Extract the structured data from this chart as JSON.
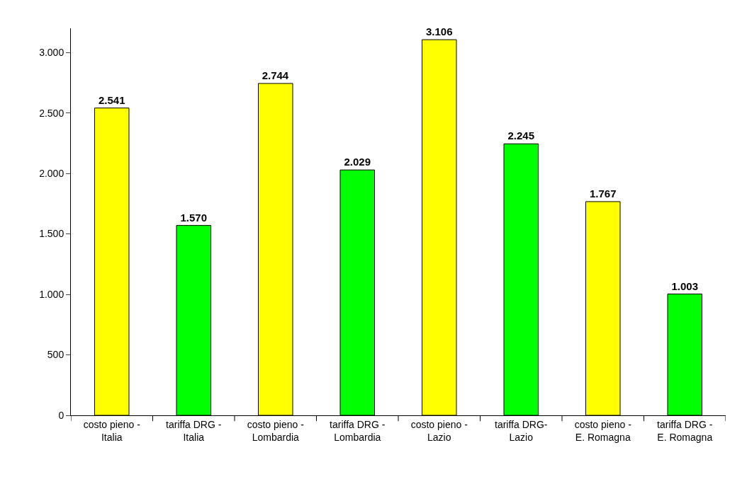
{
  "chart_data": {
    "type": "bar",
    "categories": [
      "costo pieno -\nItalia",
      "tariffa DRG -\nItalia",
      "costo pieno -\nLombardia",
      "tariffa DRG -\nLombardia",
      "costo pieno -\nLazio",
      "tariffa DRG-\nLazio",
      "costo pieno -\nE. Romagna",
      "tariffa DRG -\nE. Romagna"
    ],
    "values": [
      2541,
      1570,
      2744,
      2029,
      3106,
      2245,
      1767,
      1003
    ],
    "value_labels": [
      "2.541",
      "1.570",
      "2.744",
      "2.029",
      "3.106",
      "2.245",
      "1.767",
      "1.003"
    ],
    "colors": [
      "#ffff00",
      "#00ff00",
      "#ffff00",
      "#00ff00",
      "#ffff00",
      "#00ff00",
      "#ffff00",
      "#00ff00"
    ],
    "ylim": [
      0,
      3200
    ],
    "yticks": [
      {
        "value": 0,
        "label": "0"
      },
      {
        "value": 500,
        "label": "500"
      },
      {
        "value": 1000,
        "label": "1.000"
      },
      {
        "value": 1500,
        "label": "1.500"
      },
      {
        "value": 2000,
        "label": "2.000"
      },
      {
        "value": 2500,
        "label": "2.500"
      },
      {
        "value": 3000,
        "label": "3.000"
      }
    ]
  }
}
